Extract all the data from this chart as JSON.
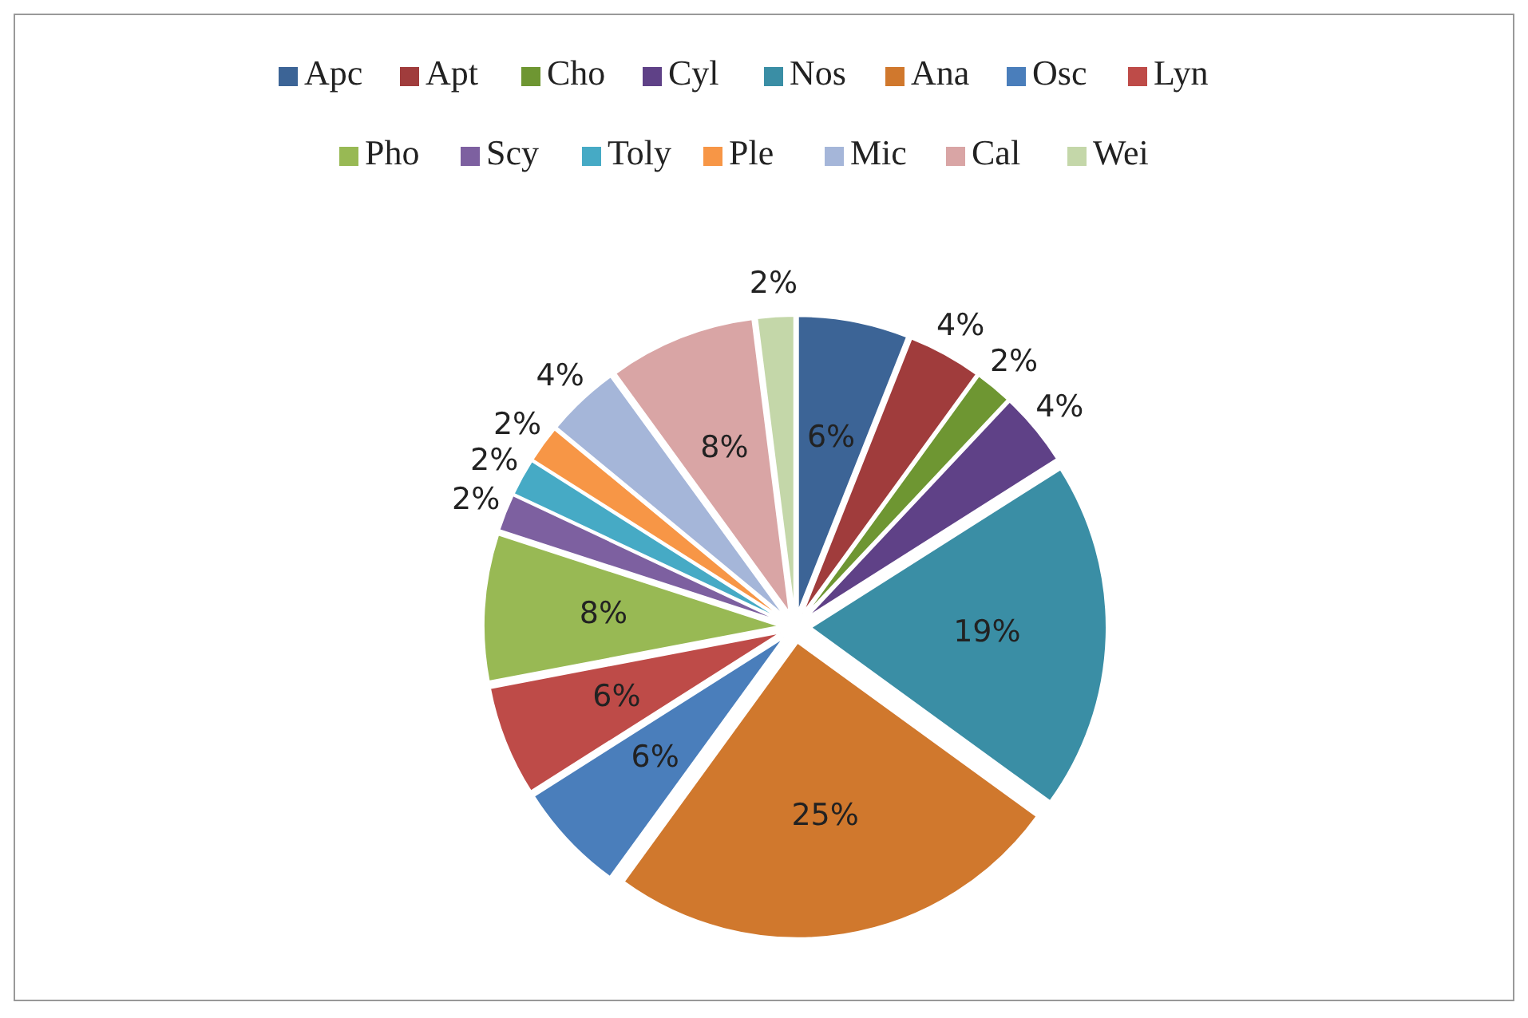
{
  "chart_data": {
    "type": "pie",
    "categories": [
      "Apc",
      "Apt",
      "Cho",
      "Cyl",
      "Nos",
      "Ana",
      "Osc",
      "Lyn",
      "Pho",
      "Scy",
      "Toly",
      "Ple",
      "Mic",
      "Cal",
      "Wei"
    ],
    "values": [
      6,
      4,
      2,
      4,
      19,
      25,
      6,
      6,
      8,
      2,
      2,
      2,
      4,
      8,
      2
    ],
    "value_labels": [
      "6%",
      "4%",
      "2%",
      "4%",
      "19%",
      "25%",
      "6%",
      "6%",
      "8%",
      "2%",
      "2%",
      "2%",
      "4%",
      "8%",
      "2%"
    ],
    "colors": [
      "#3c6496",
      "#a03c3c",
      "#6e9632",
      "#5f4187",
      "#3a8ea5",
      "#d0782d",
      "#4a7ebb",
      "#be4b48",
      "#98b954",
      "#7d60a0",
      "#46aac5",
      "#f79646",
      "#a5b6d9",
      "#d9a5a5",
      "#c4d7a9"
    ],
    "legend": "top"
  }
}
